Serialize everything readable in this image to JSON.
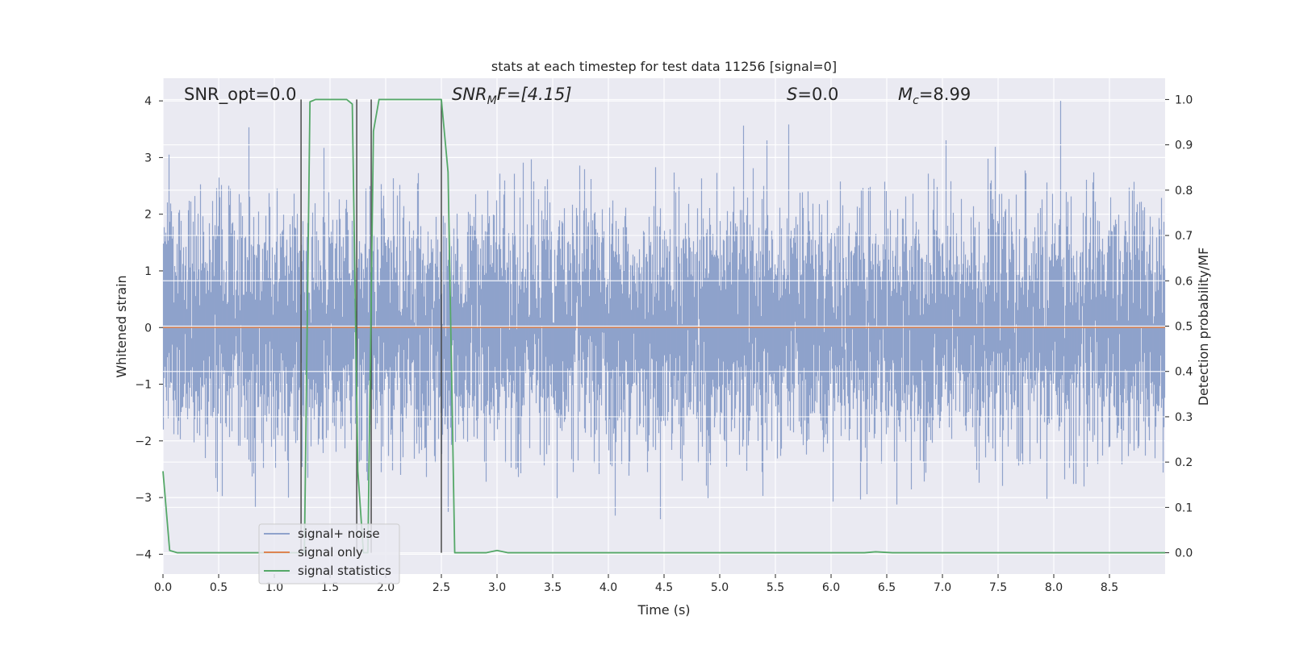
{
  "chart_data": {
    "type": "line",
    "title": "stats at each timestep for test data 11256 [signal=0]",
    "xlabel": "Time (s)",
    "ylabel": "Whitened strain",
    "y2label": "Detection probability/MF",
    "xlim": [
      0.0,
      9.0
    ],
    "ylim": [
      -4.35,
      4.4
    ],
    "y2lim": [
      -0.047,
      1.047
    ],
    "xticks": [
      "0.0",
      "0.5",
      "1.0",
      "1.5",
      "2.0",
      "2.5",
      "3.0",
      "3.5",
      "4.0",
      "4.5",
      "5.0",
      "5.5",
      "6.0",
      "6.5",
      "7.0",
      "7.5",
      "8.0",
      "8.5"
    ],
    "yticks": [
      "4",
      "3",
      "2",
      "1",
      "0",
      "−1",
      "−2",
      "−3",
      "−4"
    ],
    "y2ticks": [
      "1.0",
      "0.9",
      "0.8",
      "0.7",
      "0.6",
      "0.5",
      "0.4",
      "0.3",
      "0.2",
      "0.1",
      "0.0"
    ],
    "grid": true,
    "legend_placement": "lower-left",
    "annotations": {
      "snr_opt": "SNR_opt=0.0",
      "snr_mf_base": "SNR",
      "snr_mf_sub": "M",
      "snr_mf_rest": "F=[4.15]",
      "s_italic": "S",
      "s_rest": "=0.0",
      "mc_base": "M",
      "mc_sub": "c",
      "mc_rest": "=8.99"
    },
    "series": [
      {
        "name": "signal+ noise",
        "color": "#8fa2cb",
        "description_values": "whitened noise, approx range -4 to 4",
        "envelope_hint": [
          -2.6,
          2.6
        ]
      },
      {
        "name": "signal only",
        "color": "#dd8452",
        "x": [
          0.0,
          9.0
        ],
        "y": [
          0.0,
          0.0
        ]
      },
      {
        "name": "signal statistics",
        "color": "#55a868",
        "axis": "right",
        "x": [
          0.0,
          0.06,
          0.13,
          0.5,
          1.0,
          1.22,
          1.27,
          1.32,
          1.37,
          1.65,
          1.7,
          1.75,
          1.8,
          1.84,
          1.89,
          1.94,
          2.0,
          2.5,
          2.56,
          2.62,
          2.7,
          2.9,
          3.0,
          3.1,
          3.5,
          4.0,
          5.0,
          6.0,
          6.3,
          6.4,
          6.55,
          7.0,
          8.0,
          9.0
        ],
        "y": [
          0.18,
          0.005,
          0.0,
          0.0,
          0.0,
          0.0,
          0.0,
          0.995,
          1.0,
          1.0,
          0.99,
          0.18,
          0.0,
          0.0,
          0.93,
          1.0,
          1.0,
          1.0,
          0.84,
          0.0,
          0.0,
          0.0,
          0.005,
          0.0,
          0.0,
          0.0,
          0.0,
          0.0,
          0.0,
          0.002,
          0.0,
          0.0,
          0.0,
          0.0
        ]
      }
    ],
    "vlines": {
      "color": "#4a4a4a",
      "x": [
        1.24,
        1.74,
        1.87,
        2.5
      ]
    }
  }
}
